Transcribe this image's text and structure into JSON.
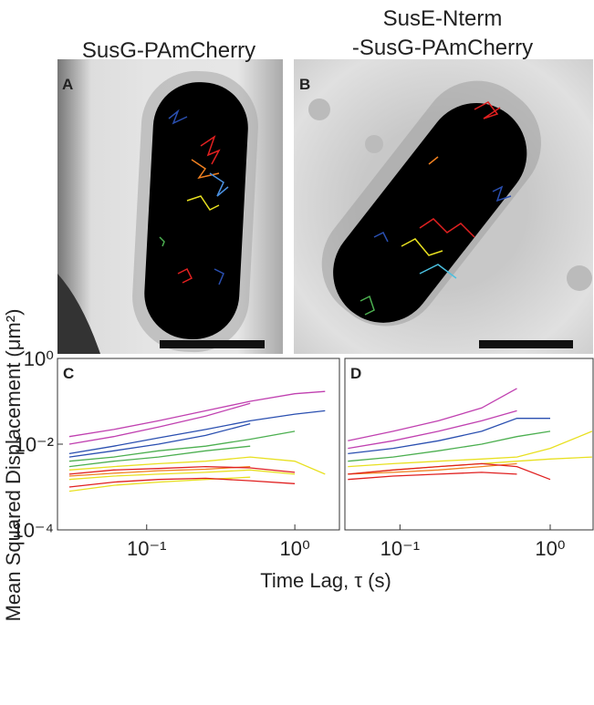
{
  "images": [
    {
      "label": "A",
      "title": [
        "SusG-PAmCherry"
      ]
    },
    {
      "label": "B",
      "title": [
        "SusE-Nterm",
        "-SusG-PAmCherry"
      ]
    }
  ],
  "shared_axes": {
    "ylabel": "Mean Squared Displacement (μm²)",
    "xlabel": "Time Lag, τ (s)"
  },
  "chart_data": [
    {
      "type": "line",
      "label": "C",
      "log_x": true,
      "log_y": true,
      "xlim": [
        0.025,
        2
      ],
      "ylim": [
        0.0001,
        1
      ],
      "xticks": [
        {
          "value": 0.1,
          "label": "10⁻¹"
        },
        {
          "value": 1,
          "label": "10⁰"
        }
      ],
      "yticks": [
        {
          "value": 0.0001,
          "label": "10⁻⁴"
        },
        {
          "value": 0.01,
          "label": "10⁻²"
        },
        {
          "value": 1,
          "label": "10⁰"
        }
      ],
      "x": [
        0.03,
        0.06,
        0.12,
        0.25,
        0.5,
        1,
        1.6
      ],
      "series": [
        {
          "color": "#c040b0",
          "values": [
            0.015,
            0.022,
            0.035,
            0.06,
            0.1,
            0.15,
            0.17
          ]
        },
        {
          "color": "#c040b0",
          "values": [
            0.01,
            0.015,
            0.025,
            0.045,
            0.09,
            null,
            null
          ]
        },
        {
          "color": "#2a4fb0",
          "values": [
            0.006,
            0.009,
            0.014,
            0.022,
            0.035,
            0.05,
            0.06
          ]
        },
        {
          "color": "#2a4fb0",
          "values": [
            0.005,
            0.007,
            0.01,
            0.016,
            0.03,
            null,
            null
          ]
        },
        {
          "color": "#4caf50",
          "values": [
            0.004,
            0.005,
            0.007,
            0.009,
            0.013,
            0.02,
            null
          ]
        },
        {
          "color": "#4caf50",
          "values": [
            0.003,
            0.004,
            0.005,
            0.007,
            0.009,
            null,
            null
          ]
        },
        {
          "color": "#e8e020",
          "values": [
            0.0025,
            0.003,
            0.0035,
            0.004,
            0.005,
            0.004,
            0.002
          ]
        },
        {
          "color": "#e8e020",
          "values": [
            0.0015,
            0.0018,
            0.002,
            0.0022,
            0.0025,
            0.002,
            null
          ]
        },
        {
          "color": "#e8e020",
          "values": [
            0.0008,
            0.0011,
            0.0013,
            0.0015,
            0.0017,
            null,
            null
          ]
        },
        {
          "color": "#f08020",
          "values": [
            0.0018,
            0.0021,
            0.0024,
            0.0026,
            0.003,
            null,
            null
          ]
        },
        {
          "color": "#e02020",
          "values": [
            0.002,
            0.0025,
            0.0027,
            0.003,
            0.0028,
            0.0022,
            null
          ]
        },
        {
          "color": "#e02020",
          "values": [
            0.001,
            0.0013,
            0.0015,
            0.0016,
            0.0014,
            0.0012,
            null
          ]
        }
      ]
    },
    {
      "type": "line",
      "label": "D",
      "log_x": true,
      "log_y": true,
      "xlim": [
        0.043,
        1.93
      ],
      "ylim": [
        0.0001,
        1
      ],
      "xticks": [
        {
          "value": 0.1,
          "label": "10⁻¹"
        },
        {
          "value": 1,
          "label": "10⁰"
        }
      ],
      "x": [
        0.045,
        0.09,
        0.18,
        0.35,
        0.6,
        1,
        1.9
      ],
      "series": [
        {
          "color": "#c040b0",
          "values": [
            0.012,
            0.02,
            0.035,
            0.07,
            0.2,
            null,
            null
          ]
        },
        {
          "color": "#c040b0",
          "values": [
            0.008,
            0.012,
            0.02,
            0.035,
            0.06,
            null,
            null
          ]
        },
        {
          "color": "#2a4fb0",
          "values": [
            0.006,
            0.008,
            0.012,
            0.02,
            0.04,
            0.04,
            null
          ]
        },
        {
          "color": "#4caf50",
          "values": [
            0.004,
            0.005,
            0.007,
            0.01,
            0.015,
            0.02,
            null
          ]
        },
        {
          "color": "#e8e020",
          "values": [
            0.003,
            0.0035,
            0.004,
            0.0045,
            0.005,
            0.008,
            0.02
          ]
        },
        {
          "color": "#e8e020",
          "values": [
            0.002,
            0.0025,
            0.003,
            0.0035,
            0.004,
            0.0045,
            0.005
          ]
        },
        {
          "color": "#f08020",
          "values": [
            0.002,
            0.0022,
            0.0025,
            0.003,
            0.0035,
            null,
            null
          ]
        },
        {
          "color": "#e02020",
          "values": [
            0.002,
            0.0025,
            0.003,
            0.0035,
            0.003,
            0.0015,
            null
          ]
        },
        {
          "color": "#e02020",
          "values": [
            0.0015,
            0.0018,
            0.002,
            0.0022,
            0.002,
            null,
            null
          ]
        }
      ]
    }
  ]
}
